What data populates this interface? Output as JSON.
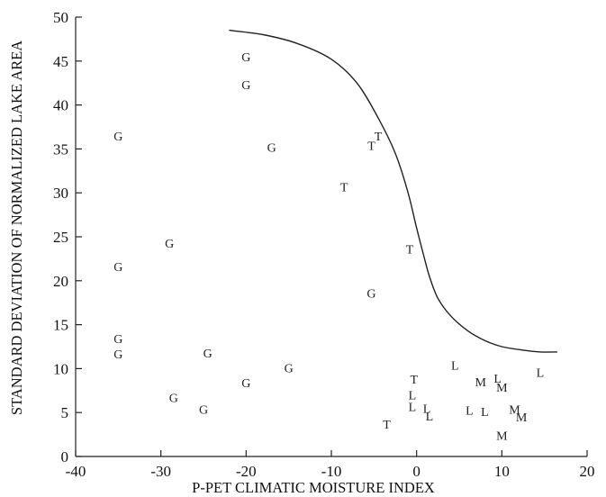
{
  "chart_data": {
    "type": "scatter",
    "xlabel": "P-PET CLIMATIC MOISTURE INDEX",
    "ylabel": "STANDARD DEVIATION OF NORMALIZED LAKE AREA",
    "xlim": [
      -40,
      20
    ],
    "ylim": [
      0,
      50
    ],
    "x_ticks": [
      -40,
      -30,
      -20,
      -10,
      0,
      10,
      20
    ],
    "y_ticks": [
      0,
      5,
      10,
      15,
      20,
      25,
      30,
      35,
      40,
      45,
      50
    ],
    "grid": false,
    "points": [
      {
        "x": -20,
        "y": 45.5,
        "label": "G"
      },
      {
        "x": -20,
        "y": 42.3,
        "label": "G"
      },
      {
        "x": -35,
        "y": 36.5,
        "label": "G"
      },
      {
        "x": -17,
        "y": 35.2,
        "label": "G"
      },
      {
        "x": -29,
        "y": 24.3,
        "label": "G"
      },
      {
        "x": -35,
        "y": 21.6,
        "label": "G"
      },
      {
        "x": -5.3,
        "y": 18.6,
        "label": "G"
      },
      {
        "x": -35,
        "y": 13.4,
        "label": "G"
      },
      {
        "x": -35,
        "y": 11.7,
        "label": "G"
      },
      {
        "x": -24.5,
        "y": 11.8,
        "label": "G"
      },
      {
        "x": -15,
        "y": 10.1,
        "label": "G"
      },
      {
        "x": -20,
        "y": 8.4,
        "label": "G"
      },
      {
        "x": -28.5,
        "y": 6.7,
        "label": "G"
      },
      {
        "x": -25,
        "y": 5.4,
        "label": "G"
      },
      {
        "x": -4.5,
        "y": 36.5,
        "label": "T"
      },
      {
        "x": -5.3,
        "y": 35.4,
        "label": "T"
      },
      {
        "x": -8.5,
        "y": 30.7,
        "label": "T"
      },
      {
        "x": -0.8,
        "y": 23.6,
        "label": "T"
      },
      {
        "x": -0.3,
        "y": 8.8,
        "label": "T"
      },
      {
        "x": -3.5,
        "y": 3.7,
        "label": "T"
      },
      {
        "x": 4.5,
        "y": 10.4,
        "label": "L"
      },
      {
        "x": 14.5,
        "y": 9.6,
        "label": "L"
      },
      {
        "x": 9.5,
        "y": 8.9,
        "label": "L"
      },
      {
        "x": -0.5,
        "y": 7.0,
        "label": "L"
      },
      {
        "x": -0.5,
        "y": 5.7,
        "label": "L"
      },
      {
        "x": 1.2,
        "y": 5.5,
        "label": "L"
      },
      {
        "x": 1.5,
        "y": 4.6,
        "label": "L"
      },
      {
        "x": 6.2,
        "y": 5.3,
        "label": "L"
      },
      {
        "x": 8,
        "y": 5.1,
        "label": "L"
      },
      {
        "x": 7.5,
        "y": 8.5,
        "label": "M"
      },
      {
        "x": 10,
        "y": 7.9,
        "label": "M"
      },
      {
        "x": 11.5,
        "y": 5.4,
        "label": "M"
      },
      {
        "x": 12.3,
        "y": 4.5,
        "label": "M"
      },
      {
        "x": 10,
        "y": 2.4,
        "label": "M"
      }
    ],
    "curve": [
      {
        "x": -22,
        "y": 48.5
      },
      {
        "x": -18,
        "y": 48.0
      },
      {
        "x": -14,
        "y": 47.0
      },
      {
        "x": -10,
        "y": 45.2
      },
      {
        "x": -7,
        "y": 42.5
      },
      {
        "x": -4.5,
        "y": 38.5
      },
      {
        "x": -2.5,
        "y": 34.5
      },
      {
        "x": -1,
        "y": 30.0
      },
      {
        "x": 0,
        "y": 26.0
      },
      {
        "x": 0.8,
        "y": 23.0
      },
      {
        "x": 1.5,
        "y": 20.5
      },
      {
        "x": 2.5,
        "y": 18.0
      },
      {
        "x": 4,
        "y": 16.0
      },
      {
        "x": 6,
        "y": 14.3
      },
      {
        "x": 8,
        "y": 13.2
      },
      {
        "x": 10,
        "y": 12.5
      },
      {
        "x": 12.5,
        "y": 12.1
      },
      {
        "x": 14.5,
        "y": 11.9
      },
      {
        "x": 16.5,
        "y": 11.9
      }
    ]
  }
}
